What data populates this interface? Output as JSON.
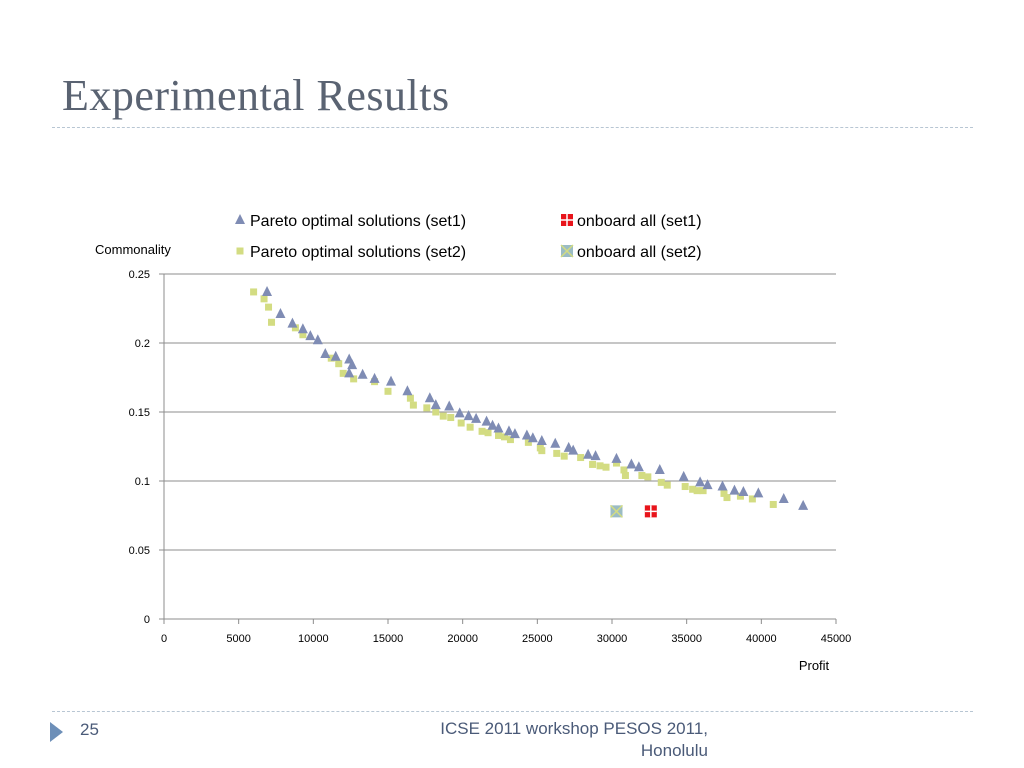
{
  "slide": {
    "title": "Experimental Results",
    "page_number": "25",
    "footer": "ICSE 2011 workshop PESOS 2011, Honolulu"
  },
  "chart_data": {
    "type": "scatter",
    "xlabel": "Profit",
    "ylabel": "Commonality",
    "xlim": [
      0,
      45000
    ],
    "ylim": [
      0,
      0.25
    ],
    "x_ticks": [
      "0",
      "5000",
      "10000",
      "15000",
      "20000",
      "25000",
      "30000",
      "35000",
      "40000",
      "45000"
    ],
    "y_ticks": [
      "0",
      "0.05",
      "0.1",
      "0.15",
      "0.2",
      "0.25"
    ],
    "grid": "horizontal",
    "legend_position": "top",
    "series": [
      {
        "name": "Pareto optimal solutions (set1)",
        "marker": "triangle",
        "color": "#7f8cb4",
        "points": [
          [
            6900,
            0.237
          ],
          [
            7800,
            0.221
          ],
          [
            8600,
            0.214
          ],
          [
            9300,
            0.21
          ],
          [
            9800,
            0.205
          ],
          [
            10300,
            0.202
          ],
          [
            10800,
            0.192
          ],
          [
            11500,
            0.19
          ],
          [
            12400,
            0.188
          ],
          [
            12600,
            0.184
          ],
          [
            12400,
            0.178
          ],
          [
            13300,
            0.177
          ],
          [
            14100,
            0.174
          ],
          [
            15200,
            0.172
          ],
          [
            16300,
            0.165
          ],
          [
            17800,
            0.16
          ],
          [
            18200,
            0.155
          ],
          [
            19100,
            0.154
          ],
          [
            19800,
            0.149
          ],
          [
            20400,
            0.147
          ],
          [
            20900,
            0.145
          ],
          [
            21600,
            0.143
          ],
          [
            22000,
            0.14
          ],
          [
            22400,
            0.138
          ],
          [
            23100,
            0.136
          ],
          [
            23500,
            0.134
          ],
          [
            24300,
            0.133
          ],
          [
            24700,
            0.131
          ],
          [
            25300,
            0.129
          ],
          [
            26200,
            0.127
          ],
          [
            27100,
            0.124
          ],
          [
            27400,
            0.122
          ],
          [
            28400,
            0.119
          ],
          [
            28900,
            0.118
          ],
          [
            30300,
            0.116
          ],
          [
            31300,
            0.112
          ],
          [
            31800,
            0.11
          ],
          [
            33200,
            0.108
          ],
          [
            34800,
            0.103
          ],
          [
            35900,
            0.099
          ],
          [
            36400,
            0.097
          ],
          [
            37400,
            0.096
          ],
          [
            38200,
            0.093
          ],
          [
            38800,
            0.092
          ],
          [
            39800,
            0.091
          ],
          [
            41500,
            0.087
          ],
          [
            42800,
            0.082
          ]
        ]
      },
      {
        "name": "Pareto optimal solutions (set2)",
        "marker": "square",
        "color": "#d3dc82",
        "points": [
          [
            6000,
            0.237
          ],
          [
            6700,
            0.232
          ],
          [
            7000,
            0.226
          ],
          [
            7200,
            0.215
          ],
          [
            8800,
            0.211
          ],
          [
            9300,
            0.206
          ],
          [
            11200,
            0.189
          ],
          [
            11700,
            0.185
          ],
          [
            12000,
            0.178
          ],
          [
            12700,
            0.174
          ],
          [
            14100,
            0.172
          ],
          [
            15000,
            0.165
          ],
          [
            16500,
            0.16
          ],
          [
            16700,
            0.155
          ],
          [
            17600,
            0.153
          ],
          [
            18200,
            0.15
          ],
          [
            18700,
            0.147
          ],
          [
            19200,
            0.146
          ],
          [
            19900,
            0.142
          ],
          [
            20500,
            0.139
          ],
          [
            21300,
            0.136
          ],
          [
            21700,
            0.135
          ],
          [
            22400,
            0.133
          ],
          [
            22800,
            0.132
          ],
          [
            23200,
            0.13
          ],
          [
            24400,
            0.128
          ],
          [
            25200,
            0.124
          ],
          [
            25300,
            0.122
          ],
          [
            26300,
            0.12
          ],
          [
            26800,
            0.118
          ],
          [
            27900,
            0.117
          ],
          [
            28700,
            0.112
          ],
          [
            29200,
            0.111
          ],
          [
            29600,
            0.11
          ],
          [
            30300,
            0.113
          ],
          [
            30800,
            0.108
          ],
          [
            30900,
            0.104
          ],
          [
            32000,
            0.104
          ],
          [
            32400,
            0.103
          ],
          [
            33300,
            0.099
          ],
          [
            33700,
            0.097
          ],
          [
            34900,
            0.096
          ],
          [
            35400,
            0.094
          ],
          [
            35700,
            0.093
          ],
          [
            36100,
            0.093
          ],
          [
            37500,
            0.091
          ],
          [
            37700,
            0.088
          ],
          [
            38600,
            0.089
          ],
          [
            39400,
            0.087
          ],
          [
            40800,
            0.083
          ]
        ]
      },
      {
        "name": "onboard all (set1)",
        "marker": "square-cross",
        "color": "#e8141b",
        "points": [
          [
            32600,
            0.078
          ]
        ]
      },
      {
        "name": "onboard all (set2)",
        "marker": "square-x",
        "color": "#9bbcc4",
        "points": [
          [
            30300,
            0.078
          ]
        ]
      }
    ]
  }
}
